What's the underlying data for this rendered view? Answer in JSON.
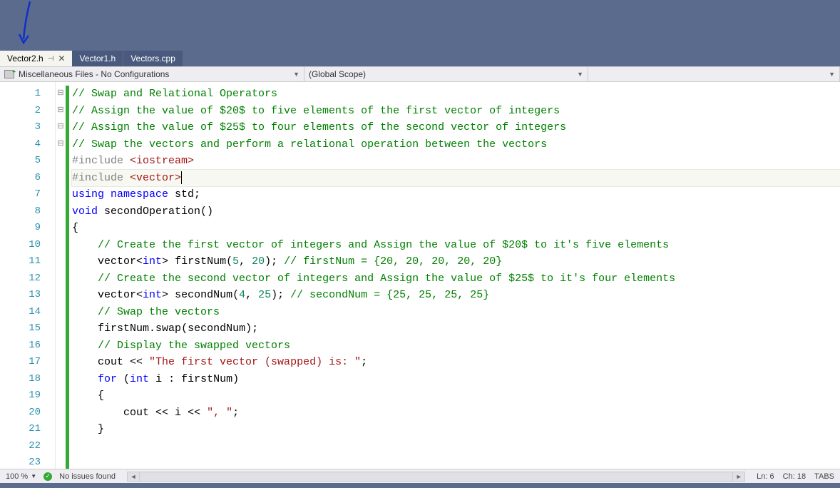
{
  "annotation": {
    "arrow_color": "#1030c8"
  },
  "tabs": [
    {
      "label": "Vector2.h",
      "active": true,
      "pinned": true,
      "closable": true
    },
    {
      "label": "Vector1.h",
      "active": false
    },
    {
      "label": "Vectors.cpp",
      "active": false
    }
  ],
  "nav": {
    "project": "Miscellaneous Files - No Configurations",
    "scope": "(Global Scope)"
  },
  "code": {
    "first_line": 1,
    "last_visible": 24,
    "cursor_line": 6,
    "cursor_col": 18,
    "fold_rows": {
      "1": "⊟",
      "5": "⊟",
      "8": "⊟",
      "21": "⊟"
    },
    "lines": [
      [
        [
          "c-comment",
          "// Swap and Relational Operators"
        ]
      ],
      [
        [
          "c-comment",
          "// Assign the value of $20$ to five elements of the first vector of integers"
        ]
      ],
      [
        [
          "c-comment",
          "// Assign the value of $25$ to four elements of the second vector of integers"
        ]
      ],
      [
        [
          "c-comment",
          "// Swap the vectors and perform a relational operation between the vectors"
        ]
      ],
      [
        [
          "c-pp",
          "#include "
        ],
        [
          "c-inc",
          "<iostream>"
        ]
      ],
      [
        [
          "c-pp",
          "#include "
        ],
        [
          "c-inc",
          "<vector>"
        ]
      ],
      [
        [
          "c-kw",
          "using "
        ],
        [
          "c-kw",
          "namespace "
        ],
        [
          "c-id",
          "std"
        ],
        [
          "c-pun",
          ";"
        ]
      ],
      [
        [
          "c-kw",
          "void "
        ],
        [
          "c-id",
          "secondOperation"
        ],
        [
          "c-pun",
          "()"
        ]
      ],
      [
        [
          "c-pun",
          "{"
        ]
      ],
      [
        [
          "c-id",
          "    "
        ],
        [
          "c-comment",
          "// Create the first vector of integers and Assign the value of $20$ to it's five elements"
        ]
      ],
      [
        [
          "c-id",
          "    vector"
        ],
        [
          "c-pun",
          "<"
        ],
        [
          "c-type",
          "int"
        ],
        [
          "c-pun",
          "> "
        ],
        [
          "c-id",
          "firstNum"
        ],
        [
          "c-pun",
          "("
        ],
        [
          "c-num",
          "5"
        ],
        [
          "c-pun",
          ", "
        ],
        [
          "c-num",
          "20"
        ],
        [
          "c-pun",
          "); "
        ],
        [
          "c-comment",
          "// firstNum = {20, 20, 20, 20, 20}"
        ]
      ],
      [
        [
          "",
          ""
        ]
      ],
      [
        [
          "c-id",
          "    "
        ],
        [
          "c-comment",
          "// Create the second vector of integers and Assign the value of $25$ to it's four elements"
        ]
      ],
      [
        [
          "c-id",
          "    vector"
        ],
        [
          "c-pun",
          "<"
        ],
        [
          "c-type",
          "int"
        ],
        [
          "c-pun",
          "> "
        ],
        [
          "c-id",
          "secondNum"
        ],
        [
          "c-pun",
          "("
        ],
        [
          "c-num",
          "4"
        ],
        [
          "c-pun",
          ", "
        ],
        [
          "c-num",
          "25"
        ],
        [
          "c-pun",
          "); "
        ],
        [
          "c-comment",
          "// secondNum = {25, 25, 25, 25}"
        ]
      ],
      [
        [
          "",
          ""
        ]
      ],
      [
        [
          "c-id",
          "    "
        ],
        [
          "c-comment",
          "// Swap the vectors"
        ]
      ],
      [
        [
          "c-id",
          "    firstNum"
        ],
        [
          "c-pun",
          "."
        ],
        [
          "c-id",
          "swap"
        ],
        [
          "c-pun",
          "("
        ],
        [
          "c-id",
          "secondNum"
        ],
        [
          "c-pun",
          ");"
        ]
      ],
      [
        [
          "",
          ""
        ]
      ],
      [
        [
          "c-id",
          "    "
        ],
        [
          "c-comment",
          "// Display the swapped vectors"
        ]
      ],
      [
        [
          "c-id",
          "    cout "
        ],
        [
          "c-pun",
          "<< "
        ],
        [
          "c-str",
          "\"The first vector (swapped) is: \""
        ],
        [
          "c-pun",
          ";"
        ]
      ],
      [
        [
          "c-id",
          "    "
        ],
        [
          "c-kw",
          "for "
        ],
        [
          "c-pun",
          "("
        ],
        [
          "c-type",
          "int "
        ],
        [
          "c-id",
          "i "
        ],
        [
          "c-pun",
          ": "
        ],
        [
          "c-id",
          "firstNum"
        ],
        [
          "c-pun",
          ")"
        ]
      ],
      [
        [
          "c-id",
          "    "
        ],
        [
          "c-pun",
          "{"
        ]
      ],
      [
        [
          "c-id",
          "        cout "
        ],
        [
          "c-pun",
          "<< "
        ],
        [
          "c-id",
          "i "
        ],
        [
          "c-pun",
          "<< "
        ],
        [
          "c-str",
          "\", \""
        ],
        [
          "c-pun",
          ";"
        ]
      ],
      [
        [
          "c-id",
          "    "
        ],
        [
          "c-pun",
          "}"
        ]
      ]
    ]
  },
  "status": {
    "zoom": "100 %",
    "issues": "No issues found",
    "ln_label": "Ln:",
    "ln": "6",
    "ch_label": "Ch:",
    "ch": "18",
    "mode": "TABS"
  },
  "colors": {
    "comment": "#008000",
    "keyword": "#0000ff",
    "string": "#a31515",
    "number": "#098658",
    "linenum": "#2b91af",
    "changebar": "#33aa33",
    "tabbar_bg": "#5b6b8e",
    "nav_bg": "#eeeef2"
  }
}
